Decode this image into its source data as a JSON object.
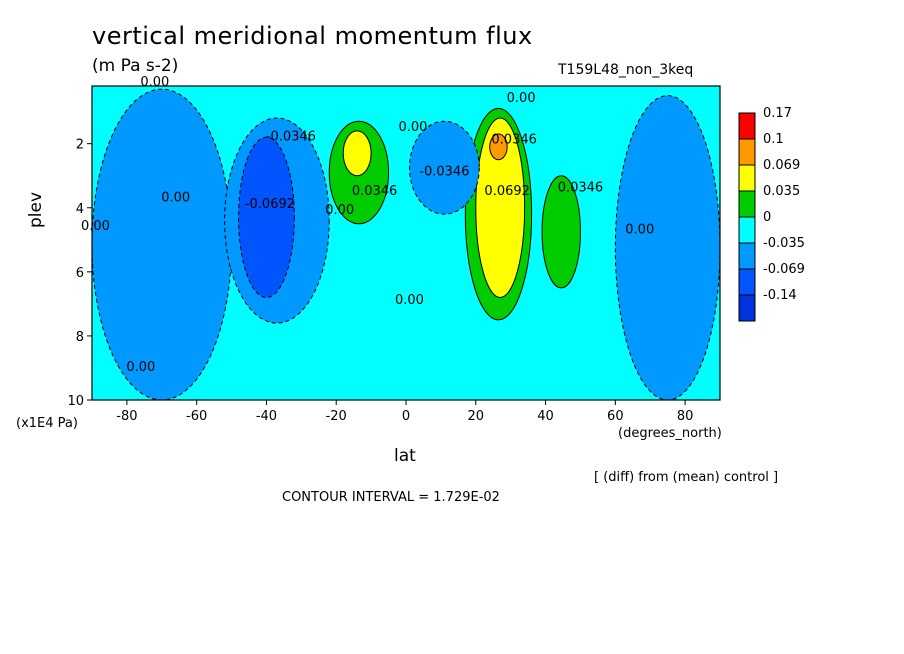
{
  "chart_data": {
    "type": "heatmap",
    "title": "vertical meridional momentum flux",
    "subtitle": "(m Pa s-2)",
    "run_label": "T159L48_non_3keq",
    "xlabel": "lat",
    "x_units": "(degrees_north)",
    "ylabel": "plev",
    "y_units": "(x1E4 Pa)",
    "xlim": [
      -90,
      90
    ],
    "ylim": [
      10,
      0.2
    ],
    "x_ticks": [
      -80,
      -60,
      -40,
      -20,
      0,
      20,
      40,
      60,
      80
    ],
    "y_ticks": [
      2,
      4,
      6,
      8,
      10
    ],
    "colorbar": {
      "levels": [
        "0.17",
        "0.1",
        "0.069",
        "0.035",
        "0",
        "-0.035",
        "-0.069",
        "-0.14"
      ],
      "colors": [
        "#ff0000",
        "#ff9900",
        "#ffff00",
        "#00cc00",
        "#00ffff",
        "#0099ff",
        "#0055ff",
        "#0033dd"
      ]
    },
    "background_value": "0 to 0.035",
    "features": [
      {
        "label": "-0.0692",
        "lat_range": [
          -48,
          -32
        ],
        "plev_range": [
          1.8,
          6.8
        ],
        "level": "-0.069"
      },
      {
        "label": "-0.0346",
        "lat_range": [
          -52,
          -22
        ],
        "plev_range": [
          1.2,
          7.6
        ],
        "level": "-0.035"
      },
      {
        "label": "0.0346",
        "lat_range": [
          -22,
          -5
        ],
        "plev_range": [
          1.3,
          4.5
        ],
        "level": "0.035"
      },
      {
        "label": "",
        "lat_range": [
          -18,
          -10
        ],
        "plev_range": [
          1.6,
          3.0
        ],
        "level": "0.069"
      },
      {
        "label": "-0.0346",
        "lat_range": [
          1,
          21
        ],
        "plev_range": [
          1.3,
          4.2
        ],
        "level": "-0.035"
      },
      {
        "label": "0.0692",
        "lat_range": [
          20,
          34
        ],
        "plev_range": [
          1.2,
          6.8
        ],
        "level": "0.069"
      },
      {
        "label": "0.0346",
        "lat_range": [
          17,
          36
        ],
        "plev_range": [
          0.9,
          7.5
        ],
        "level": "0.035"
      },
      {
        "label": "",
        "lat_range": [
          24,
          29
        ],
        "plev_range": [
          1.7,
          2.5
        ],
        "level": "0.1"
      },
      {
        "label": "0.0346",
        "lat_range": [
          39,
          50
        ],
        "plev_range": [
          3.0,
          6.5
        ],
        "level": "0.035"
      },
      {
        "label": "0.00",
        "lat_range": [
          -90,
          -50
        ],
        "plev_range": [
          0.3,
          10
        ],
        "level": "-0.035"
      },
      {
        "label": "0.00",
        "lat_range": [
          60,
          90
        ],
        "plev_range": [
          0.5,
          10
        ],
        "level": "-0.035"
      }
    ],
    "contour_labels": [
      {
        "text": "0.00",
        "lat": -72,
        "plev": 0.2
      },
      {
        "text": "0.00",
        "lat": 33,
        "plev": 0.7
      },
      {
        "text": "-0.0346",
        "lat": -33,
        "plev": 1.9
      },
      {
        "text": "0.00",
        "lat": -66,
        "plev": 3.8
      },
      {
        "text": "-0.0692",
        "lat": -39,
        "plev": 4.0
      },
      {
        "text": "0.00",
        "lat": -89,
        "plev": 4.7
      },
      {
        "text": "0.0346",
        "lat": -9,
        "plev": 3.6
      },
      {
        "text": "0.00",
        "lat": -19,
        "plev": 4.2
      },
      {
        "text": "0.00",
        "lat": 2,
        "plev": 1.6
      },
      {
        "text": "-0.0346",
        "lat": 11,
        "plev": 3.0
      },
      {
        "text": "0.0346",
        "lat": 31,
        "plev": 2.0
      },
      {
        "text": "0.0692",
        "lat": 29,
        "plev": 3.6
      },
      {
        "text": "0.0346",
        "lat": 50,
        "plev": 3.5
      },
      {
        "text": "0.00",
        "lat": 67,
        "plev": 4.8
      },
      {
        "text": "0.00",
        "lat": 1,
        "plev": 7.0
      },
      {
        "text": "0.00",
        "lat": -76,
        "plev": 9.1
      }
    ]
  },
  "contour_interval_text": "CONTOUR INTERVAL = 1.729E-02",
  "diff_note": "[ (diff) from (mean) control ]"
}
